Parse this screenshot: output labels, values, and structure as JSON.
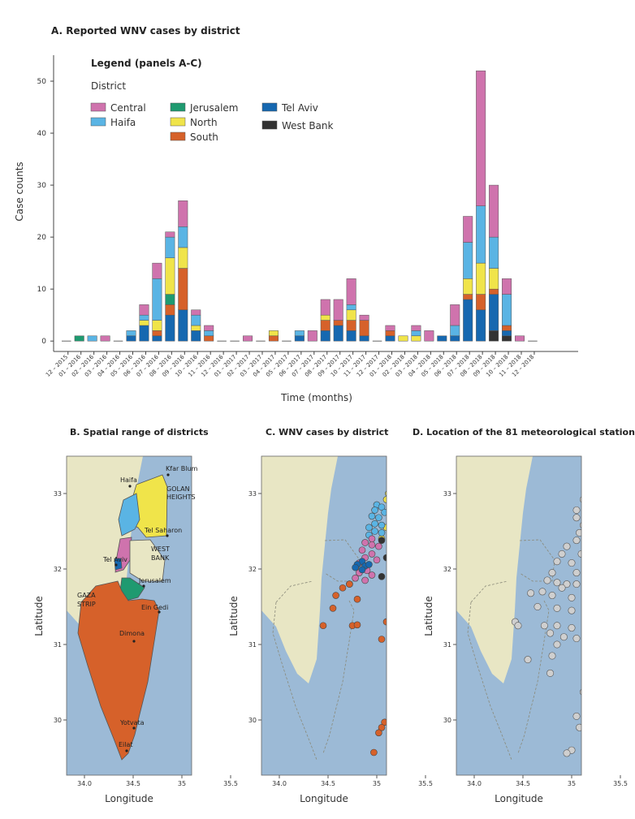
{
  "panel_a": {
    "title": "A. Reported WNV cases by district",
    "legend_title": "Legend (panels A-C)",
    "legend_subtitle": "District",
    "xlabel": "Time (months)",
    "ylabel": "Case counts"
  },
  "colors": {
    "Central": "#cf73ad",
    "Haifa": "#5ab4e4",
    "Jerusalem": "#1f9a70",
    "North": "#f0e44a",
    "South": "#d6612a",
    "Tel Aviv": "#1668b0",
    "West Bank": "#333333",
    "sea": "#9cbad6",
    "land": "#e8e6c4"
  },
  "chart_data": [
    {
      "type": "bar",
      "stacked": true,
      "title": "A. Reported WNV cases by district",
      "xlabel": "Time (months)",
      "ylabel": "Case counts",
      "ylim": [
        -2,
        55
      ],
      "yticks": [
        0,
        10,
        20,
        30,
        40,
        50
      ],
      "categories": [
        "12 – 2015",
        "01 – 2016",
        "02 – 2016",
        "03 – 2016",
        "04 – 2016",
        "05 – 2016",
        "06 – 2016",
        "07 – 2016",
        "08 – 2016",
        "09 – 2016",
        "10 – 2016",
        "11 – 2016",
        "12 – 2016",
        "01 – 2017",
        "02 – 2017",
        "03 – 2017",
        "04 – 2017",
        "05 – 2017",
        "06 – 2017",
        "07 – 2017",
        "08 – 2017",
        "09 – 2017",
        "10 – 2017",
        "11 – 2017",
        "12 – 2017",
        "01 – 2018",
        "02 – 2018",
        "03 – 2018",
        "04 – 2018",
        "05 – 2018",
        "06 – 2018",
        "07 – 2018",
        "08 – 2018",
        "09 – 2018",
        "10 – 2018",
        "11 – 2018",
        "12 – 2018"
      ],
      "series": [
        {
          "name": "West Bank",
          "values": [
            0,
            0,
            0,
            0,
            0,
            0,
            0,
            0,
            0,
            0,
            0,
            0,
            0,
            0,
            0,
            0,
            0,
            0,
            0,
            0,
            0,
            0,
            0,
            0,
            0,
            0,
            0,
            0,
            0,
            0,
            0,
            0,
            0,
            2,
            1,
            0,
            0
          ]
        },
        {
          "name": "Tel Aviv",
          "values": [
            0,
            0,
            0,
            0,
            0,
            1,
            3,
            1,
            5,
            6,
            2,
            0,
            0,
            0,
            0,
            0,
            0,
            0,
            1,
            0,
            2,
            3,
            2,
            1,
            0,
            1,
            0,
            0,
            0,
            1,
            1,
            8,
            6,
            7,
            1,
            0,
            0
          ]
        },
        {
          "name": "South",
          "values": [
            0,
            0,
            0,
            0,
            0,
            0,
            0,
            1,
            2,
            8,
            0,
            1,
            0,
            0,
            0,
            0,
            1,
            0,
            0,
            0,
            2,
            1,
            2,
            3,
            0,
            1,
            0,
            0,
            0,
            0,
            0,
            1,
            3,
            1,
            1,
            0,
            0
          ]
        },
        {
          "name": "Jerusalem",
          "values": [
            0,
            1,
            0,
            0,
            0,
            0,
            0,
            0,
            2,
            0,
            0,
            0,
            0,
            0,
            0,
            0,
            0,
            0,
            0,
            0,
            0,
            0,
            0,
            0,
            0,
            0,
            0,
            0,
            0,
            0,
            0,
            0,
            0,
            0,
            0,
            0,
            0
          ]
        },
        {
          "name": "North",
          "values": [
            0,
            0,
            0,
            0,
            0,
            0,
            1,
            2,
            7,
            4,
            1,
            0,
            0,
            0,
            0,
            0,
            1,
            0,
            0,
            0,
            1,
            0,
            2,
            0,
            0,
            0,
            1,
            1,
            0,
            0,
            0,
            3,
            6,
            4,
            0,
            0,
            0
          ]
        },
        {
          "name": "Haifa",
          "values": [
            0,
            0,
            1,
            0,
            0,
            1,
            1,
            8,
            4,
            4,
            2,
            1,
            0,
            0,
            0,
            0,
            0,
            0,
            1,
            0,
            0,
            0,
            1,
            0,
            0,
            0,
            0,
            1,
            0,
            0,
            2,
            7,
            11,
            6,
            6,
            0,
            0
          ]
        },
        {
          "name": "Central",
          "values": [
            0,
            0,
            0,
            1,
            0,
            0,
            2,
            3,
            1,
            5,
            1,
            1,
            0,
            0,
            1,
            0,
            0,
            0,
            0,
            2,
            3,
            4,
            5,
            1,
            0,
            1,
            0,
            1,
            2,
            0,
            4,
            5,
            26,
            10,
            3,
            1,
            0
          ]
        }
      ],
      "legend": [
        "Central",
        "Haifa",
        "Jerusalem",
        "North",
        "South",
        "Tel Aviv",
        "West Bank"
      ],
      "legend_placement": "top-left",
      "grid": false
    },
    {
      "type": "map",
      "title": "B. Spatial range of districts",
      "xlabel": "Longitude",
      "ylabel": "Latitude",
      "xticks": [
        "34.0",
        "34.5",
        "35",
        "35.5"
      ],
      "yticks": [
        "30",
        "31",
        "32",
        "33"
      ],
      "places": [
        "Kfar Blum",
        "GOLAN",
        "HEIGHTS",
        "Haifa",
        "Tel Saharon",
        "WEST",
        "BANK",
        "Tel Aviv",
        "Jerusalem",
        "GAZA",
        "STRIP",
        "Ein Gedi",
        "Dimona",
        "Yotvata",
        "Eilat"
      ]
    },
    {
      "type": "map",
      "title": "C. WNV cases by district",
      "xlabel": "Longitude",
      "ylabel": "Latitude",
      "xticks": [
        "34.0",
        "34.5",
        "35",
        "35.5"
      ],
      "yticks": [
        "30",
        "31",
        "32",
        "33"
      ],
      "cases": [
        {
          "district": "North",
          "lon": 35.18,
          "lat": 33.08
        },
        {
          "district": "North",
          "lon": 35.25,
          "lat": 33.05
        },
        {
          "district": "North",
          "lon": 35.3,
          "lat": 33.02
        },
        {
          "district": "North",
          "lon": 35.12,
          "lat": 33.0
        },
        {
          "district": "North",
          "lon": 35.22,
          "lat": 32.98
        },
        {
          "district": "North",
          "lon": 35.35,
          "lat": 32.95
        },
        {
          "district": "North",
          "lon": 35.45,
          "lat": 32.92
        },
        {
          "district": "North",
          "lon": 35.55,
          "lat": 33.2
        },
        {
          "district": "North",
          "lon": 35.65,
          "lat": 33.15
        },
        {
          "district": "North",
          "lon": 35.1,
          "lat": 32.92
        },
        {
          "district": "North",
          "lon": 35.2,
          "lat": 32.88
        },
        {
          "district": "North",
          "lon": 35.3,
          "lat": 32.85
        },
        {
          "district": "North",
          "lon": 35.4,
          "lat": 32.82
        },
        {
          "district": "North",
          "lon": 35.15,
          "lat": 32.8
        },
        {
          "district": "North",
          "lon": 35.25,
          "lat": 32.75
        },
        {
          "district": "North",
          "lon": 35.35,
          "lat": 32.72
        },
        {
          "district": "North",
          "lon": 35.45,
          "lat": 32.7
        },
        {
          "district": "North",
          "lon": 35.2,
          "lat": 32.68
        },
        {
          "district": "North",
          "lon": 35.3,
          "lat": 32.65
        },
        {
          "district": "North",
          "lon": 35.4,
          "lat": 32.6
        },
        {
          "district": "North",
          "lon": 35.5,
          "lat": 32.58
        },
        {
          "district": "North",
          "lon": 35.15,
          "lat": 32.62
        },
        {
          "district": "North",
          "lon": 35.25,
          "lat": 32.58
        },
        {
          "district": "North",
          "lon": 35.1,
          "lat": 32.55
        },
        {
          "district": "North",
          "lon": 35.05,
          "lat": 32.4
        },
        {
          "district": "Haifa",
          "lon": 35.0,
          "lat": 32.85
        },
        {
          "district": "Haifa",
          "lon": 35.05,
          "lat": 32.82
        },
        {
          "district": "Haifa",
          "lon": 34.98,
          "lat": 32.78
        },
        {
          "district": "Haifa",
          "lon": 35.08,
          "lat": 32.75
        },
        {
          "district": "Haifa",
          "lon": 34.95,
          "lat": 32.7
        },
        {
          "district": "Haifa",
          "lon": 35.02,
          "lat": 32.68
        },
        {
          "district": "Haifa",
          "lon": 34.98,
          "lat": 32.6
        },
        {
          "district": "Haifa",
          "lon": 35.05,
          "lat": 32.58
        },
        {
          "district": "Haifa",
          "lon": 34.92,
          "lat": 32.55
        },
        {
          "district": "Haifa",
          "lon": 34.98,
          "lat": 32.5
        },
        {
          "district": "Haifa",
          "lon": 35.05,
          "lat": 32.48
        },
        {
          "district": "Haifa",
          "lon": 34.92,
          "lat": 32.45
        },
        {
          "district": "Central",
          "lon": 34.95,
          "lat": 32.4
        },
        {
          "district": "Central",
          "lon": 34.88,
          "lat": 32.35
        },
        {
          "district": "Central",
          "lon": 34.95,
          "lat": 32.32
        },
        {
          "district": "Central",
          "lon": 35.02,
          "lat": 32.3
        },
        {
          "district": "Central",
          "lon": 34.85,
          "lat": 32.25
        },
        {
          "district": "Central",
          "lon": 34.95,
          "lat": 32.2
        },
        {
          "district": "Central",
          "lon": 34.88,
          "lat": 32.15
        },
        {
          "district": "Central",
          "lon": 35.0,
          "lat": 32.12
        },
        {
          "district": "Central",
          "lon": 34.82,
          "lat": 32.08
        },
        {
          "district": "Central",
          "lon": 34.9,
          "lat": 31.98
        },
        {
          "district": "Central",
          "lon": 34.82,
          "lat": 31.95
        },
        {
          "district": "Central",
          "lon": 34.95,
          "lat": 31.92
        },
        {
          "district": "Central",
          "lon": 34.78,
          "lat": 31.88
        },
        {
          "district": "Central",
          "lon": 34.88,
          "lat": 31.85
        },
        {
          "district": "Central",
          "lon": 34.72,
          "lat": 31.8
        },
        {
          "district": "Tel Aviv",
          "lon": 34.85,
          "lat": 32.1
        },
        {
          "district": "Tel Aviv",
          "lon": 34.8,
          "lat": 32.06
        },
        {
          "district": "Tel Aviv",
          "lon": 34.88,
          "lat": 32.04
        },
        {
          "district": "Tel Aviv",
          "lon": 34.78,
          "lat": 32.02
        },
        {
          "district": "Tel Aviv",
          "lon": 34.85,
          "lat": 31.99
        },
        {
          "district": "Tel Aviv",
          "lon": 34.92,
          "lat": 32.06
        },
        {
          "district": "West Bank",
          "lon": 35.05,
          "lat": 32.38
        },
        {
          "district": "West Bank",
          "lon": 35.1,
          "lat": 32.15
        },
        {
          "district": "West Bank",
          "lon": 35.05,
          "lat": 31.9
        },
        {
          "district": "West Bank",
          "lon": 35.22,
          "lat": 31.65
        },
        {
          "district": "Jerusalem",
          "lon": 35.15,
          "lat": 31.8
        },
        {
          "district": "Jerusalem",
          "lon": 35.22,
          "lat": 31.78
        },
        {
          "district": "South",
          "lon": 34.72,
          "lat": 31.8
        },
        {
          "district": "South",
          "lon": 34.65,
          "lat": 31.75
        },
        {
          "district": "South",
          "lon": 34.58,
          "lat": 31.65
        },
        {
          "district": "South",
          "lon": 34.8,
          "lat": 31.6
        },
        {
          "district": "South",
          "lon": 34.55,
          "lat": 31.48
        },
        {
          "district": "South",
          "lon": 34.45,
          "lat": 31.25
        },
        {
          "district": "South",
          "lon": 34.75,
          "lat": 31.25
        },
        {
          "district": "South",
          "lon": 34.8,
          "lat": 31.26
        },
        {
          "district": "South",
          "lon": 35.1,
          "lat": 31.3
        },
        {
          "district": "South",
          "lon": 35.05,
          "lat": 31.07
        },
        {
          "district": "South",
          "lon": 35.15,
          "lat": 30.37
        },
        {
          "district": "South",
          "lon": 35.08,
          "lat": 29.97
        },
        {
          "district": "South",
          "lon": 35.05,
          "lat": 29.9
        },
        {
          "district": "South",
          "lon": 35.02,
          "lat": 29.83
        },
        {
          "district": "South",
          "lon": 34.97,
          "lat": 29.57
        }
      ]
    },
    {
      "type": "map",
      "title": "D. Location of the 81 meteorological stations",
      "xlabel": "Longitude",
      "ylabel": "Latitude",
      "xticks": [
        "34.0",
        "34.5",
        "35",
        "35.5"
      ],
      "yticks": [
        "30",
        "31",
        "32",
        "33"
      ],
      "stations": [
        [
          35.55,
          33.25
        ],
        [
          35.6,
          33.24
        ],
        [
          35.68,
          33.12
        ],
        [
          35.2,
          33.08
        ],
        [
          35.3,
          33.06
        ],
        [
          35.5,
          33.03
        ],
        [
          35.58,
          33.0
        ],
        [
          35.14,
          33.0
        ],
        [
          35.25,
          33.0
        ],
        [
          35.38,
          32.97
        ],
        [
          35.45,
          32.95
        ],
        [
          35.6,
          32.93
        ],
        [
          35.12,
          32.92
        ],
        [
          35.2,
          32.9
        ],
        [
          35.35,
          32.88
        ],
        [
          35.5,
          32.87
        ],
        [
          35.3,
          32.8
        ],
        [
          35.05,
          32.78
        ],
        [
          35.15,
          32.75
        ],
        [
          35.22,
          32.72
        ],
        [
          35.42,
          32.72
        ],
        [
          35.5,
          32.7
        ],
        [
          35.58,
          32.7
        ],
        [
          35.05,
          32.68
        ],
        [
          35.18,
          32.65
        ],
        [
          35.35,
          32.62
        ],
        [
          35.45,
          32.6
        ],
        [
          35.12,
          32.58
        ],
        [
          35.4,
          32.52
        ],
        [
          35.45,
          32.5
        ],
        [
          35.08,
          32.48
        ],
        [
          35.05,
          32.38
        ],
        [
          34.95,
          32.3
        ],
        [
          35.2,
          32.25
        ],
        [
          34.9,
          32.2
        ],
        [
          35.1,
          32.2
        ],
        [
          35.25,
          32.18
        ],
        [
          35.3,
          32.08
        ],
        [
          34.85,
          32.1
        ],
        [
          35.0,
          32.08
        ],
        [
          35.15,
          32.05
        ],
        [
          35.4,
          32.0
        ],
        [
          34.8,
          31.95
        ],
        [
          35.05,
          31.95
        ],
        [
          35.25,
          31.95
        ],
        [
          34.75,
          31.85
        ],
        [
          34.85,
          31.82
        ],
        [
          34.95,
          31.8
        ],
        [
          35.05,
          31.8
        ],
        [
          35.15,
          31.78
        ],
        [
          35.25,
          31.78
        ],
        [
          34.9,
          31.75
        ],
        [
          35.38,
          31.78
        ],
        [
          34.7,
          31.7
        ],
        [
          34.58,
          31.68
        ],
        [
          34.8,
          31.65
        ],
        [
          35.0,
          31.62
        ],
        [
          35.2,
          31.6
        ],
        [
          34.65,
          31.5
        ],
        [
          34.85,
          31.48
        ],
        [
          35.0,
          31.45
        ],
        [
          35.35,
          31.42
        ],
        [
          34.42,
          31.3
        ],
        [
          34.45,
          31.25
        ],
        [
          34.72,
          31.25
        ],
        [
          34.85,
          31.25
        ],
        [
          35.0,
          31.22
        ],
        [
          35.15,
          31.25
        ],
        [
          34.78,
          31.15
        ],
        [
          34.92,
          31.1
        ],
        [
          35.05,
          31.08
        ],
        [
          34.85,
          31.0
        ],
        [
          34.8,
          30.85
        ],
        [
          34.55,
          30.8
        ],
        [
          35.15,
          30.78
        ],
        [
          34.78,
          30.62
        ],
        [
          35.12,
          30.37
        ],
        [
          35.05,
          30.05
        ],
        [
          35.08,
          29.9
        ],
        [
          35.0,
          29.6
        ],
        [
          34.95,
          29.56
        ]
      ]
    }
  ]
}
